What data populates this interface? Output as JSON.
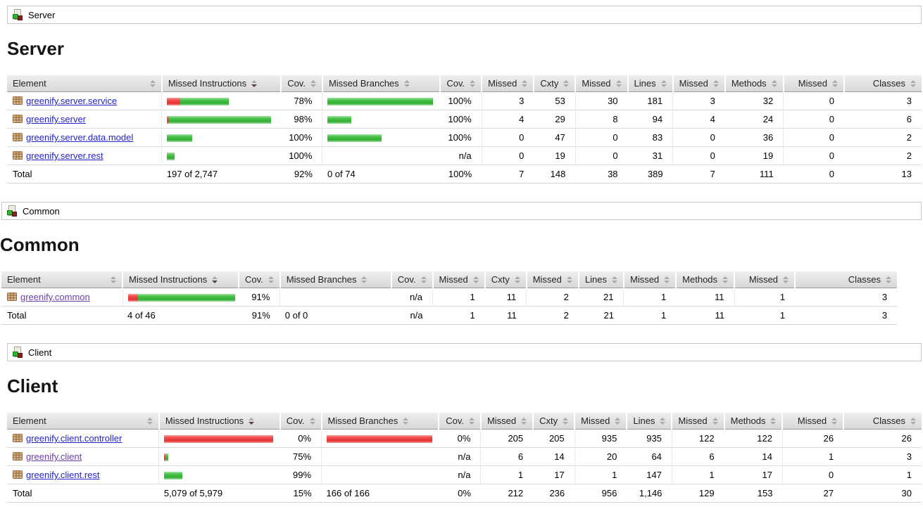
{
  "icons": {
    "breadcrumb_icon": "coverage-report-icon",
    "element_icon": "package-icon",
    "sort_icon": "sort-arrows-icon"
  },
  "colors": {
    "bar_red": "#e53131",
    "bar_green": "#30ad30",
    "link": "#2323c8",
    "link_visited": "#6b3fa5",
    "header_bg": "#e2e2e2"
  },
  "columns": [
    {
      "label": "Element",
      "sorted": null
    },
    {
      "label": "Missed Instructions",
      "sorted": "down"
    },
    {
      "label": "Cov.",
      "sorted": null
    },
    {
      "label": "Missed Branches",
      "sorted": null
    },
    {
      "label": "Cov.",
      "sorted": null
    },
    {
      "label": "Missed",
      "sorted": null
    },
    {
      "label": "Cxty",
      "sorted": null
    },
    {
      "label": "Missed",
      "sorted": null
    },
    {
      "label": "Lines",
      "sorted": null
    },
    {
      "label": "Missed",
      "sorted": null
    },
    {
      "label": "Methods",
      "sorted": null
    },
    {
      "label": "Missed",
      "sorted": null
    },
    {
      "label": "Classes",
      "sorted": null
    }
  ],
  "sections": [
    {
      "id": "server",
      "breadcrumb": "Server",
      "heading": "Server",
      "rows": [
        {
          "element": "greenify.server.service",
          "visited": false,
          "instr_bar": {
            "red": 19,
            "green": 69
          },
          "instr_cov": "78%",
          "branch_bar": {
            "red": 0,
            "green": 150
          },
          "branch_cov": "100%",
          "nums": [
            "3",
            "53",
            "30",
            "181",
            "3",
            "32",
            "0",
            "3"
          ]
        },
        {
          "element": "greenify.server",
          "visited": false,
          "instr_bar": {
            "red": 3,
            "green": 145
          },
          "instr_cov": "98%",
          "branch_bar": {
            "red": 0,
            "green": 34
          },
          "branch_cov": "100%",
          "nums": [
            "4",
            "29",
            "8",
            "94",
            "4",
            "24",
            "0",
            "6"
          ]
        },
        {
          "element": "greenify.server.data.model",
          "visited": false,
          "instr_bar": {
            "red": 0,
            "green": 36
          },
          "instr_cov": "100%",
          "branch_bar": {
            "red": 0,
            "green": 77
          },
          "branch_cov": "100%",
          "nums": [
            "0",
            "47",
            "0",
            "83",
            "0",
            "36",
            "0",
            "2"
          ]
        },
        {
          "element": "greenify.server.rest",
          "visited": false,
          "instr_bar": {
            "red": 0,
            "green": 11
          },
          "instr_cov": "100%",
          "branch_bar": null,
          "branch_cov": "n/a",
          "nums": [
            "0",
            "19",
            "0",
            "31",
            "0",
            "19",
            "0",
            "2"
          ]
        }
      ],
      "total": {
        "label": "Total",
        "instr": "197 of 2,747",
        "instr_cov": "92%",
        "branch": "0 of 74",
        "branch_cov": "100%",
        "nums": [
          "7",
          "148",
          "38",
          "389",
          "7",
          "111",
          "0",
          "13"
        ]
      }
    },
    {
      "id": "common",
      "breadcrumb": "Common",
      "heading": "Common",
      "rows": [
        {
          "element": "greenify.common",
          "visited": true,
          "instr_bar": {
            "red": 14,
            "green": 138
          },
          "instr_cov": "91%",
          "branch_bar": null,
          "branch_cov": "n/a",
          "nums": [
            "1",
            "11",
            "2",
            "21",
            "1",
            "11",
            "1",
            "3"
          ]
        }
      ],
      "total": {
        "label": "Total",
        "instr": "4 of 46",
        "instr_cov": "91%",
        "branch": "0 of 0",
        "branch_cov": "n/a",
        "nums": [
          "1",
          "11",
          "2",
          "21",
          "1",
          "11",
          "1",
          "3"
        ]
      }
    },
    {
      "id": "client",
      "breadcrumb": "Client",
      "heading": "Client",
      "rows": [
        {
          "element": "greenify.client.controller",
          "visited": false,
          "instr_bar": {
            "red": 155,
            "green": 0
          },
          "instr_cov": "0%",
          "branch_bar": {
            "red": 150,
            "green": 0
          },
          "branch_cov": "0%",
          "nums": [
            "205",
            "205",
            "935",
            "935",
            "122",
            "122",
            "26",
            "26"
          ]
        },
        {
          "element": "greenify.client",
          "visited": true,
          "instr_bar": {
            "red": 2,
            "green": 4
          },
          "instr_cov": "75%",
          "branch_bar": null,
          "branch_cov": "n/a",
          "nums": [
            "6",
            "14",
            "20",
            "64",
            "6",
            "14",
            "1",
            "3"
          ]
        },
        {
          "element": "greenify.client.rest",
          "visited": false,
          "instr_bar": {
            "red": 0,
            "green": 26
          },
          "instr_cov": "99%",
          "branch_bar": null,
          "branch_cov": "n/a",
          "nums": [
            "1",
            "17",
            "1",
            "147",
            "1",
            "17",
            "0",
            "1"
          ]
        }
      ],
      "total": {
        "label": "Total",
        "instr": "5,079 of 5,979",
        "instr_cov": "15%",
        "branch": "166 of 166",
        "branch_cov": "0%",
        "nums": [
          "212",
          "236",
          "956",
          "1,146",
          "129",
          "153",
          "27",
          "30"
        ]
      }
    }
  ]
}
